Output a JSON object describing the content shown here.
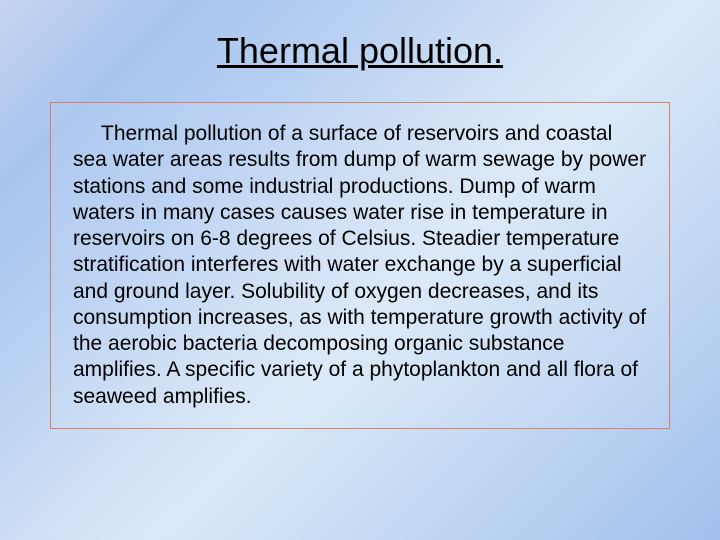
{
  "slide": {
    "title": "Thermal pollution.",
    "body": "Thermal pollution of a surface of reservoirs and coastal sea water areas results from dump of warm sewage by power stations and some industrial productions. Dump of warm waters in many cases causes water rise in temperature in reservoirs on 6-8 degrees of Celsius. Steadier temperature stratification interferes with water exchange by a superficial and ground layer. Solubility of oxygen decreases, and its consumption increases, as with temperature growth activity of the aerobic bacteria decomposing organic substance amplifies. A specific variety of a phytoplankton and all flora of seaweed amplifies."
  },
  "style": {
    "background_gradient": [
      "#c5d4f0",
      "#a8c4ee",
      "#b8d0f2",
      "#cfe0f5",
      "#d8e8f8",
      "#c8dcf4",
      "#b5cef0",
      "#a0c0ea"
    ],
    "title_color": "#000000",
    "title_fontsize": 36,
    "body_color": "#000000",
    "body_fontsize": 21,
    "box_border_color": "#d4826a",
    "font_family": "Arial"
  }
}
